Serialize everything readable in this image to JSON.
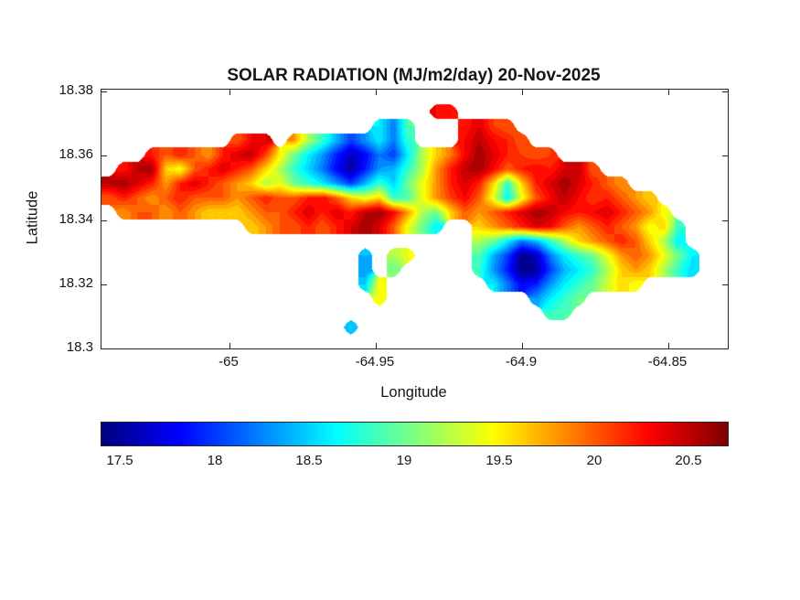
{
  "figure": {
    "background": "#ffffff",
    "frame_color": "#262626"
  },
  "chart_data": {
    "type": "heatmap",
    "variant": "filled-contour-map",
    "title": "SOLAR RADIATION (MJ/m2/day) 20-Nov-2025",
    "xlabel": "Longitude",
    "ylabel": "Latitude",
    "xlim": [
      -65.0437,
      -64.8297
    ],
    "ylim": [
      18.3,
      18.3806
    ],
    "xticks": [
      {
        "value": -65,
        "label": "-65"
      },
      {
        "value": -64.95,
        "label": "-64.95"
      },
      {
        "value": -64.9,
        "label": "-64.9"
      },
      {
        "value": -64.85,
        "label": "-64.85"
      }
    ],
    "yticks": [
      {
        "value": 18.38,
        "label": "18.38"
      },
      {
        "value": 18.36,
        "label": "18.36"
      },
      {
        "value": 18.34,
        "label": "18.34"
      },
      {
        "value": 18.32,
        "label": "18.32"
      },
      {
        "value": 18.3,
        "label": "18.3"
      }
    ],
    "colormap": "jet",
    "color_range": [
      17.4,
      20.7
    ],
    "contour_interval": 0.1,
    "colorbar": {
      "orientation": "horizontal",
      "ticks": [
        {
          "value": 17.5,
          "label": "17.5"
        },
        {
          "value": 18,
          "label": "18"
        },
        {
          "value": 18.5,
          "label": "18.5"
        },
        {
          "value": 19,
          "label": "19"
        },
        {
          "value": 19.5,
          "label": "19.5"
        },
        {
          "value": 20,
          "label": "20"
        },
        {
          "value": 20.5,
          "label": "20.5"
        }
      ]
    },
    "grid": {
      "nx": 44,
      "ny": 18,
      "x_range": [
        -65.0437,
        -64.8297
      ],
      "y_range": [
        18.3806,
        18.3
      ],
      "values": [
        [
          null,
          null,
          null,
          null,
          null,
          null,
          null,
          null,
          null,
          null,
          null,
          null,
          null,
          null,
          null,
          null,
          null,
          null,
          null,
          null,
          null,
          null,
          null,
          null,
          null,
          null,
          null,
          null,
          null,
          null,
          null,
          null,
          null,
          null,
          null,
          null,
          null,
          null,
          null,
          null,
          null,
          null,
          null,
          null
        ],
        [
          null,
          null,
          null,
          null,
          null,
          null,
          null,
          null,
          null,
          null,
          null,
          null,
          null,
          null,
          null,
          null,
          null,
          null,
          null,
          null,
          null,
          null,
          null,
          20.3,
          20.2,
          null,
          null,
          null,
          null,
          null,
          null,
          null,
          null,
          null,
          null,
          null,
          null,
          null,
          null,
          null,
          null,
          null,
          null,
          null
        ],
        [
          null,
          null,
          null,
          null,
          null,
          null,
          null,
          null,
          null,
          null,
          null,
          null,
          null,
          null,
          null,
          null,
          null,
          null,
          null,
          18.6,
          18.2,
          18.9,
          null,
          null,
          null,
          20.2,
          20.4,
          20.1,
          20.0,
          null,
          null,
          null,
          null,
          null,
          null,
          null,
          null,
          null,
          null,
          null,
          null,
          null,
          null,
          null
        ],
        [
          null,
          null,
          null,
          null,
          null,
          null,
          null,
          null,
          null,
          20.0,
          20.3,
          20.4,
          null,
          19.8,
          19.2,
          18.8,
          18.4,
          18.0,
          18.3,
          18.6,
          18.2,
          18.8,
          null,
          null,
          null,
          20.3,
          20.5,
          20.3,
          20.2,
          20.0,
          null,
          null,
          null,
          null,
          null,
          null,
          null,
          null,
          null,
          null,
          null,
          null,
          null,
          null
        ],
        [
          null,
          null,
          null,
          20.2,
          20.0,
          20.2,
          20.0,
          19.8,
          20.2,
          20.4,
          20.5,
          20.1,
          19.5,
          19.0,
          18.6,
          18.3,
          17.9,
          17.6,
          17.8,
          18.2,
          18.0,
          18.6,
          19.2,
          19.6,
          19.9,
          20.3,
          20.6,
          20.4,
          20.2,
          20.1,
          20.0,
          20.1,
          null,
          null,
          null,
          null,
          null,
          null,
          null,
          null,
          null,
          null,
          null,
          null
        ],
        [
          null,
          20.2,
          20.5,
          20.6,
          19.6,
          19.4,
          20.0,
          20.2,
          20.4,
          20.2,
          20.0,
          19.6,
          19.2,
          18.8,
          18.5,
          18.2,
          17.8,
          17.5,
          17.9,
          18.3,
          18.4,
          18.8,
          19.2,
          19.8,
          20.2,
          20.5,
          20.6,
          20.3,
          20.0,
          20.2,
          20.3,
          20.2,
          20.4,
          20.5,
          20.0,
          null,
          null,
          null,
          null,
          null,
          null,
          null,
          null,
          null
        ],
        [
          20.5,
          20.6,
          20.4,
          20.2,
          19.8,
          20.2,
          20.4,
          20.2,
          20.0,
          19.8,
          19.6,
          19.2,
          19.4,
          19.0,
          18.8,
          18.6,
          18.3,
          18.0,
          18.4,
          18.8,
          18.5,
          19.0,
          19.4,
          19.8,
          20.2,
          20.4,
          20.2,
          19.6,
          18.8,
          19.6,
          20.2,
          20.4,
          20.6,
          20.4,
          20.2,
          20.0,
          19.8,
          null,
          null,
          null,
          null,
          null,
          null,
          null
        ],
        [
          20.0,
          20.2,
          20.0,
          19.8,
          20.0,
          20.2,
          20.0,
          20.0,
          20.0,
          19.8,
          20.0,
          20.2,
          20.0,
          20.0,
          20.2,
          20.3,
          20.0,
          19.6,
          19.4,
          19.6,
          18.8,
          18.9,
          19.4,
          19.8,
          20.1,
          20.3,
          20.0,
          19.4,
          18.6,
          19.4,
          20.0,
          20.3,
          20.5,
          20.3,
          20.1,
          20.2,
          20.0,
          19.8,
          19.6,
          null,
          null,
          null,
          null,
          null
        ],
        [
          null,
          19.8,
          20.0,
          20.0,
          19.8,
          20.0,
          19.8,
          19.6,
          19.6,
          19.6,
          19.8,
          20.0,
          20.0,
          20.2,
          20.4,
          20.2,
          20.4,
          20.2,
          20.5,
          20.6,
          20.3,
          19.8,
          19.2,
          19.0,
          19.6,
          20.0,
          19.8,
          20.0,
          20.2,
          20.4,
          20.6,
          20.5,
          20.3,
          20.2,
          20.3,
          20.4,
          20.2,
          20.0,
          19.8,
          19.4,
          null,
          null,
          null,
          null
        ],
        [
          null,
          null,
          null,
          null,
          null,
          null,
          null,
          null,
          null,
          null,
          19.6,
          19.8,
          20.0,
          20.0,
          20.2,
          20.0,
          20.2,
          20.4,
          20.6,
          20.4,
          20.0,
          19.4,
          19.0,
          18.6,
          null,
          null,
          19.6,
          19.8,
          20.0,
          20.2,
          20.4,
          20.3,
          20.0,
          19.8,
          20.0,
          20.2,
          20.0,
          19.8,
          19.4,
          19.6,
          18.8,
          null,
          null,
          null
        ],
        [
          null,
          null,
          null,
          null,
          null,
          null,
          null,
          null,
          null,
          null,
          null,
          null,
          null,
          null,
          null,
          null,
          null,
          null,
          null,
          null,
          null,
          null,
          null,
          null,
          null,
          null,
          19.2,
          19.0,
          18.6,
          18.2,
          18.4,
          18.8,
          19.2,
          19.6,
          19.8,
          20.0,
          20.2,
          20.0,
          19.6,
          19.2,
          18.6,
          null,
          null,
          null
        ],
        [
          null,
          null,
          null,
          null,
          null,
          null,
          null,
          null,
          null,
          null,
          null,
          null,
          null,
          null,
          null,
          null,
          null,
          null,
          18.4,
          null,
          19.2,
          19.4,
          null,
          null,
          null,
          null,
          18.9,
          18.4,
          18.0,
          17.45,
          17.6,
          18.2,
          18.6,
          18.8,
          19.0,
          19.4,
          19.8,
          20.0,
          19.8,
          19.4,
          19.0,
          18.6,
          null,
          null
        ],
        [
          null,
          null,
          null,
          null,
          null,
          null,
          null,
          null,
          null,
          null,
          null,
          null,
          null,
          null,
          null,
          null,
          null,
          null,
          18.3,
          null,
          19.0,
          null,
          null,
          null,
          null,
          null,
          18.8,
          18.3,
          17.9,
          17.4,
          17.5,
          18.0,
          18.4,
          18.6,
          18.8,
          19.2,
          19.6,
          19.8,
          19.6,
          19.2,
          18.8,
          18.5,
          null,
          null
        ],
        [
          null,
          null,
          null,
          null,
          null,
          null,
          null,
          null,
          null,
          null,
          null,
          null,
          null,
          null,
          null,
          null,
          null,
          null,
          18.5,
          19.5,
          null,
          null,
          null,
          null,
          null,
          null,
          null,
          18.6,
          18.2,
          17.8,
          17.9,
          18.3,
          18.6,
          18.8,
          19.0,
          19.3,
          19.6,
          19.4,
          null,
          null,
          null,
          null,
          null,
          null
        ],
        [
          null,
          null,
          null,
          null,
          null,
          null,
          null,
          null,
          null,
          null,
          null,
          null,
          null,
          null,
          null,
          null,
          null,
          null,
          null,
          19.4,
          null,
          null,
          null,
          null,
          null,
          null,
          null,
          null,
          null,
          null,
          18.3,
          18.6,
          18.8,
          19.0,
          null,
          null,
          null,
          null,
          null,
          null,
          null,
          null,
          null,
          null
        ],
        [
          null,
          null,
          null,
          null,
          null,
          null,
          null,
          null,
          null,
          null,
          null,
          null,
          null,
          null,
          null,
          null,
          null,
          null,
          null,
          null,
          null,
          null,
          null,
          null,
          null,
          null,
          null,
          null,
          null,
          null,
          null,
          18.8,
          18.9,
          null,
          null,
          null,
          null,
          null,
          null,
          null,
          null,
          null,
          null,
          null
        ],
        [
          null,
          null,
          null,
          null,
          null,
          null,
          null,
          null,
          null,
          null,
          null,
          null,
          null,
          null,
          null,
          null,
          null,
          18.4,
          null,
          null,
          null,
          null,
          null,
          null,
          null,
          null,
          null,
          null,
          null,
          null,
          null,
          null,
          null,
          null,
          null,
          null,
          null,
          null,
          null,
          null,
          null,
          null,
          null,
          null
        ],
        [
          null,
          null,
          null,
          null,
          null,
          null,
          null,
          null,
          null,
          null,
          null,
          null,
          null,
          null,
          null,
          null,
          null,
          null,
          null,
          null,
          null,
          null,
          null,
          null,
          null,
          null,
          null,
          null,
          null,
          null,
          null,
          null,
          null,
          null,
          null,
          null,
          null,
          null,
          null,
          null,
          null,
          null,
          null,
          null
        ]
      ]
    }
  }
}
